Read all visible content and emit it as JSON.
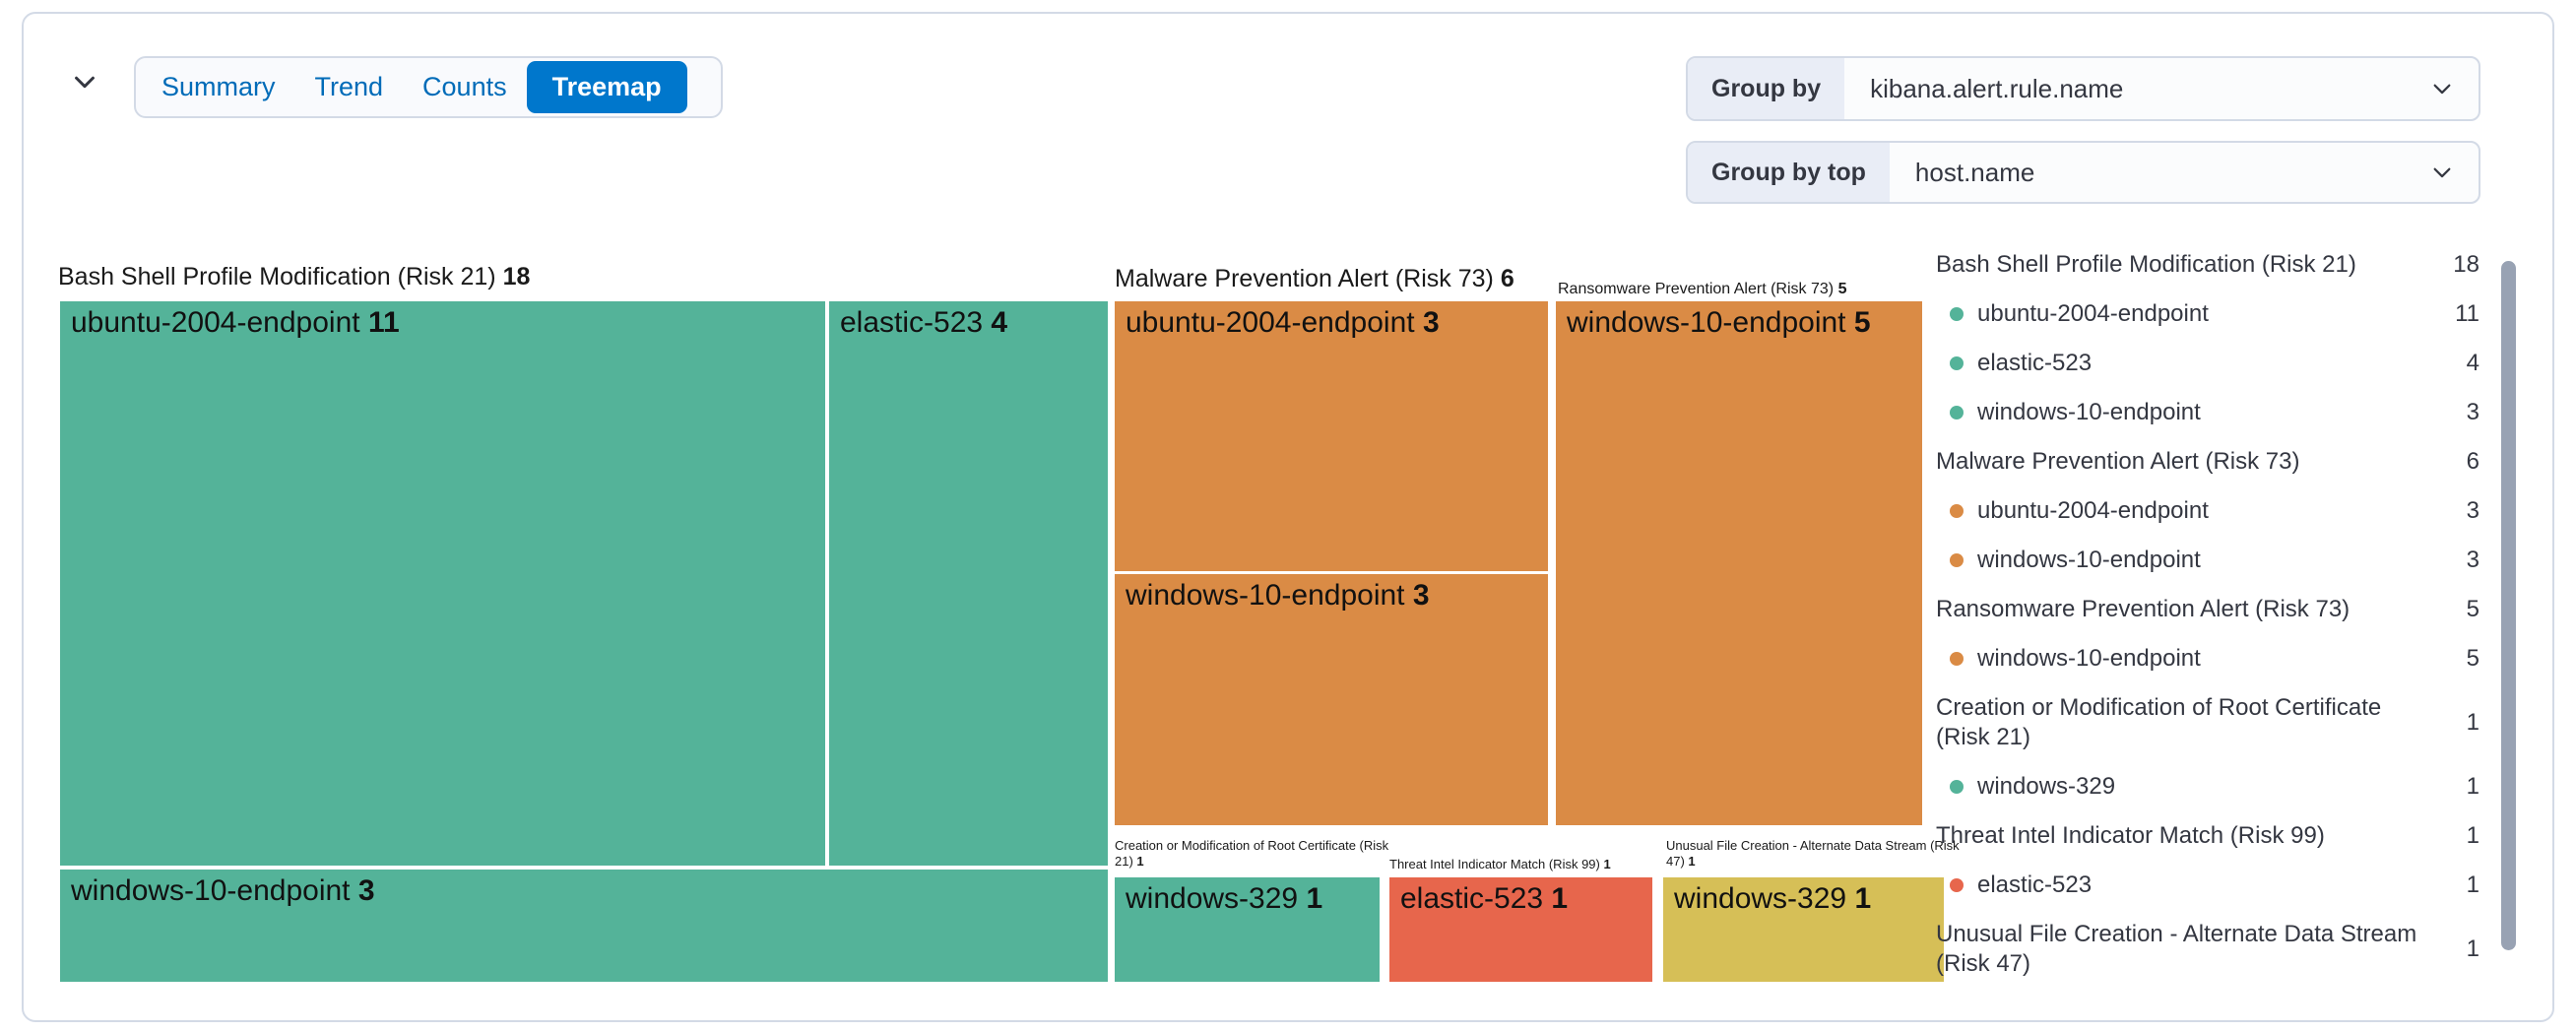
{
  "toolbar": {
    "collapse_icon": "chevron-down",
    "tabs": [
      {
        "label": "Summary",
        "selected": false
      },
      {
        "label": "Trend",
        "selected": false
      },
      {
        "label": "Counts",
        "selected": false
      },
      {
        "label": "Treemap",
        "selected": true
      }
    ],
    "group_by": {
      "label": "Group by",
      "value": "kibana.alert.rule.name"
    },
    "group_by_top": {
      "label": "Group by top",
      "value": "host.name"
    }
  },
  "colors": {
    "teal": "#54B399",
    "orange": "#DA8B45",
    "coral": "#E7664C",
    "yellow": "#D6BF57",
    "selected_tab": "#0077CC",
    "tab_text": "#006BB8",
    "panel_border": "#D3DAE6",
    "form_label_bg": "#E9EDF6",
    "text": "#343741",
    "scrollbar": "#98A2B3"
  },
  "chart_data": {
    "type": "treemap",
    "group_by": "kibana.alert.rule.name",
    "group_by_top": "host.name",
    "groups": [
      {
        "name": "Bash Shell Profile Modification (Risk 21)",
        "total": 18,
        "color": "#54B399",
        "children": [
          {
            "name": "ubuntu-2004-endpoint",
            "value": 11
          },
          {
            "name": "elastic-523",
            "value": 4
          },
          {
            "name": "windows-10-endpoint",
            "value": 3
          }
        ]
      },
      {
        "name": "Malware Prevention Alert (Risk 73)",
        "total": 6,
        "color": "#DA8B45",
        "children": [
          {
            "name": "ubuntu-2004-endpoint",
            "value": 3
          },
          {
            "name": "windows-10-endpoint",
            "value": 3
          }
        ]
      },
      {
        "name": "Ransomware Prevention Alert (Risk 73)",
        "total": 5,
        "color": "#DA8B45",
        "children": [
          {
            "name": "windows-10-endpoint",
            "value": 5
          }
        ]
      },
      {
        "name": "Creation or Modification of Root Certificate (Risk 21)",
        "total": 1,
        "color": "#54B399",
        "children": [
          {
            "name": "windows-329",
            "value": 1
          }
        ]
      },
      {
        "name": "Threat Intel Indicator Match (Risk 99)",
        "total": 1,
        "color": "#E7664C",
        "children": [
          {
            "name": "elastic-523",
            "value": 1
          }
        ]
      },
      {
        "name": "Unusual File Creation - Alternate Data Stream (Risk 47)",
        "total": 1,
        "color": "#D6BF57",
        "children": [
          {
            "name": "windows-329",
            "value": 1
          }
        ]
      }
    ]
  },
  "legend": {
    "items": [
      {
        "label": "Bash Shell Profile Modification (Risk 21)",
        "count": "18"
      },
      {
        "label": "ubuntu-2004-endpoint",
        "count": "11",
        "dot": "#54B399"
      },
      {
        "label": "elastic-523",
        "count": "4",
        "dot": "#54B399"
      },
      {
        "label": "windows-10-endpoint",
        "count": "3",
        "dot": "#54B399"
      },
      {
        "label": "Malware Prevention Alert (Risk 73)",
        "count": "6"
      },
      {
        "label": "ubuntu-2004-endpoint",
        "count": "3",
        "dot": "#DA8B45"
      },
      {
        "label": "windows-10-endpoint",
        "count": "3",
        "dot": "#DA8B45"
      },
      {
        "label": "Ransomware Prevention Alert (Risk 73)",
        "count": "5"
      },
      {
        "label": "windows-10-endpoint",
        "count": "5",
        "dot": "#DA8B45"
      },
      {
        "label": "Creation or Modification of Root Certificate (Risk 21)",
        "count": "1"
      },
      {
        "label": "windows-329",
        "count": "1",
        "dot": "#54B399"
      },
      {
        "label": "Threat Intel Indicator Match (Risk 99)",
        "count": "1"
      },
      {
        "label": "elastic-523",
        "count": "1",
        "dot": "#E7664C"
      },
      {
        "label": "Unusual File Creation - Alternate Data Stream (Risk 47)",
        "count": "1"
      }
    ]
  }
}
